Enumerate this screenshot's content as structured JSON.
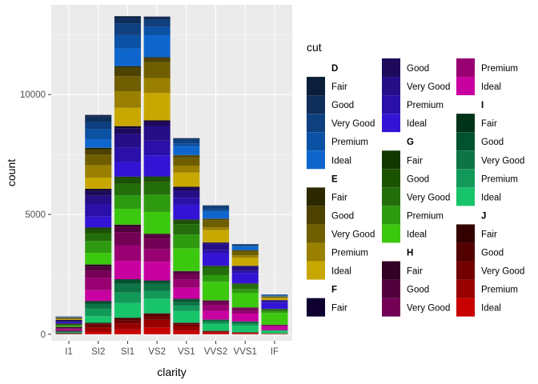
{
  "chart_data": {
    "type": "bar",
    "stacked": true,
    "title": "",
    "xlabel": "clarity",
    "ylabel": "count",
    "ylim": [
      0,
      13500
    ],
    "yticks": [
      0,
      5000,
      10000
    ],
    "ytick_labels": [
      "0",
      "5000",
      "10000"
    ],
    "categories": [
      "I1",
      "SI2",
      "SI1",
      "VS2",
      "VS1",
      "VVS2",
      "VVS1",
      "IF"
    ],
    "legend_title": "cut",
    "legend_placement": "right",
    "stack_order_top_to_bottom": [
      "D",
      "E",
      "F",
      "G",
      "H",
      "I",
      "J"
    ],
    "groups": [
      {
        "name": "D",
        "colors": [
          "#0B1F3A",
          "#0F2E5A",
          "#0E3F7E",
          "#0B52A5",
          "#0E66CC"
        ],
        "cuts": [
          {
            "name": "Fair",
            "values": [
              4,
              56,
              58,
              25,
              5,
              9,
              3,
              3
            ]
          },
          {
            "name": "Good",
            "values": [
              8,
              223,
              237,
              104,
              43,
              25,
              13,
              9
            ]
          },
          {
            "name": "Very Good",
            "values": [
              5,
              314,
              494,
              309,
              175,
              141,
              52,
              23
            ]
          },
          {
            "name": "Premium",
            "values": [
              12,
              421,
              556,
              339,
              131,
              94,
              40,
              10
            ]
          },
          {
            "name": "Ideal",
            "values": [
              13,
              356,
              738,
              920,
              351,
              284,
              144,
              28
            ]
          }
        ]
      },
      {
        "name": "E",
        "colors": [
          "#2C2800",
          "#4D4200",
          "#6E5E00",
          "#9A8000",
          "#C8A800"
        ],
        "cuts": [
          {
            "name": "Fair",
            "values": [
              9,
              78,
              65,
              42,
              14,
              13,
              3,
              0
            ]
          },
          {
            "name": "Good",
            "values": [
              23,
              202,
              355,
              160,
              89,
              52,
              43,
              9
            ]
          },
          {
            "name": "Very Good",
            "values": [
              22,
              445,
              626,
              664,
              339,
              298,
              170,
              43
            ]
          },
          {
            "name": "Premium",
            "values": [
              30,
              519,
              693,
              629,
              292,
              121,
              105,
              27
            ]
          },
          {
            "name": "Ideal",
            "values": [
              18,
              469,
              766,
              1136,
              593,
              507,
              335,
              79
            ]
          }
        ]
      },
      {
        "name": "F",
        "colors": [
          "#0D0030",
          "#1E0A5C",
          "#250E86",
          "#2A10A8",
          "#3414D4"
        ],
        "cuts": [
          {
            "name": "Fair",
            "values": [
              35,
              89,
              83,
              53,
              33,
              10,
              5,
              4
            ]
          },
          {
            "name": "Good",
            "values": [
              19,
              201,
              247,
              184,
              132,
              50,
              35,
              4
            ]
          },
          {
            "name": "Very Good",
            "values": [
              13,
              343,
              559,
              608,
              293,
              249,
              174,
              67
            ]
          },
          {
            "name": "Premium",
            "values": [
              34,
              523,
              608,
              619,
              290,
              146,
              80,
              24
            ]
          },
          {
            "name": "Ideal",
            "values": [
              42,
              453,
              608,
              879,
              616,
              520,
              440,
              271
            ]
          }
        ]
      },
      {
        "name": "G",
        "colors": [
          "#123800",
          "#1B5200",
          "#236E0A",
          "#2E9A10",
          "#3DC810"
        ],
        "cuts": [
          {
            "name": "Fair",
            "values": [
              53,
              80,
              69,
              45,
              45,
              17,
              3,
              5
            ]
          },
          {
            "name": "Good",
            "values": [
              19,
              163,
              235,
              192,
              152,
              75,
              41,
              6
            ]
          },
          {
            "name": "Very Good",
            "values": [
              16,
              327,
              474,
              522,
              432,
              302,
              190,
              79
            ]
          },
          {
            "name": "Premium",
            "values": [
              46,
              492,
              566,
              721,
              566,
              275,
              171,
              79
            ]
          },
          {
            "name": "Ideal",
            "values": [
              16,
              486,
              660,
              910,
              953,
              774,
              594,
              491
            ]
          }
        ]
      },
      {
        "name": "H",
        "colors": [
          "#330025",
          "#52003D",
          "#730055",
          "#990072",
          "#C800A0"
        ],
        "cuts": [
          {
            "name": "Fair",
            "values": [
              52,
              91,
              75,
              41,
              32,
              11,
              1,
              0
            ]
          },
          {
            "name": "Good",
            "values": [
              14,
              158,
              235,
              138,
              77,
              45,
              31,
              4
            ]
          },
          {
            "name": "Very Good",
            "values": [
              12,
              301,
              547,
              458,
              257,
              145,
              115,
              29
            ]
          },
          {
            "name": "Premium",
            "values": [
              46,
              521,
              655,
              532,
              336,
              235,
              112,
              44
            ]
          },
          {
            "name": "Ideal",
            "values": [
              38,
              450,
              763,
              781,
              458,
              367,
              326,
              143
            ]
          }
        ]
      },
      {
        "name": "I",
        "colors": [
          "#00331A",
          "#005230",
          "#0C7445",
          "#12995A",
          "#18C46A"
        ],
        "cuts": [
          {
            "name": "Fair",
            "values": [
              34,
              45,
              30,
              32,
              25,
              8,
              1,
              2
            ]
          },
          {
            "name": "Good",
            "values": [
              9,
              81,
              165,
              110,
              103,
              26,
              22,
              6
            ]
          },
          {
            "name": "Very Good",
            "values": [
              8,
              198,
              365,
              301,
              163,
              71,
              69,
              19
            ]
          },
          {
            "name": "Premium",
            "values": [
              24,
              312,
              435,
              315,
              221,
              82,
              84,
              16
            ]
          },
          {
            "name": "Ideal",
            "values": [
              17,
              274,
              612,
              612,
              481,
              284,
              279,
              99
            ]
          }
        ]
      },
      {
        "name": "J",
        "colors": [
          "#330000",
          "#520000",
          "#730000",
          "#990000",
          "#C80000"
        ],
        "cuts": [
          {
            "name": "Fair",
            "values": [
              23,
              27,
              28,
              23,
              16,
              1,
              1,
              0
            ]
          },
          {
            "name": "Good",
            "values": [
              4,
              53,
              88,
              90,
              52,
              13,
              1,
              6
            ]
          },
          {
            "name": "Very Good",
            "values": [
              8,
              128,
              136,
              161,
              91,
              29,
              19,
              8
            ]
          },
          {
            "name": "Premium",
            "values": [
              13,
              161,
              237,
              315,
              178,
              34,
              24,
              3
            ]
          },
          {
            "name": "Ideal",
            "values": [
              2,
              110,
              201,
              284,
              149,
              65,
              35,
              17
            ]
          }
        ]
      }
    ]
  }
}
